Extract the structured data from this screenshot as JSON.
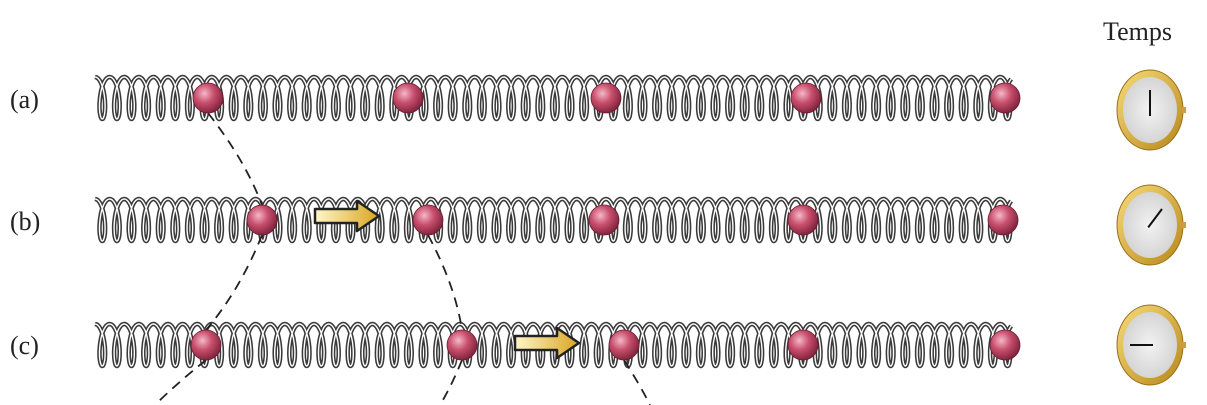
{
  "header": {
    "title": "Temps"
  },
  "rows": [
    {
      "label": "(a)"
    },
    {
      "label": "(b)"
    },
    {
      "label": "(c)"
    }
  ]
}
